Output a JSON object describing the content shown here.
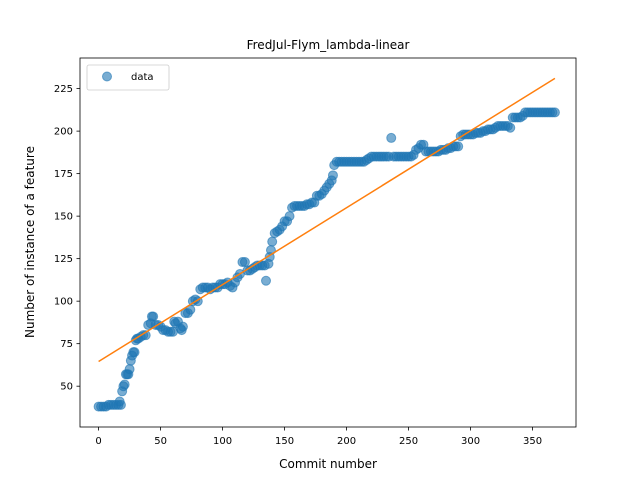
{
  "chart_data": {
    "type": "scatter",
    "title": "FredJul-Flym_lambda-linear",
    "xlabel": "Commit number",
    "ylabel": "Number of instance of a feature",
    "xlim": [
      -15,
      385
    ],
    "ylim": [
      26,
      243
    ],
    "xticks": [
      0,
      50,
      100,
      150,
      200,
      250,
      300,
      350
    ],
    "yticks": [
      50,
      75,
      100,
      125,
      150,
      175,
      200,
      225
    ],
    "grid": false,
    "legend": {
      "placement": "top-left",
      "entries": [
        "data"
      ]
    },
    "series": [
      {
        "name": "data",
        "kind": "scatter",
        "color": "#1f77b4",
        "points": [
          [
            0,
            38
          ],
          [
            2,
            38
          ],
          [
            4,
            38
          ],
          [
            6,
            38
          ],
          [
            8,
            39
          ],
          [
            10,
            39
          ],
          [
            12,
            39
          ],
          [
            14,
            39
          ],
          [
            16,
            39
          ],
          [
            17,
            41
          ],
          [
            18,
            39
          ],
          [
            19,
            47
          ],
          [
            20,
            50
          ],
          [
            21,
            51
          ],
          [
            22,
            57
          ],
          [
            23,
            57
          ],
          [
            24,
            57
          ],
          [
            25,
            60
          ],
          [
            26,
            65
          ],
          [
            27,
            68
          ],
          [
            28,
            70
          ],
          [
            29,
            70
          ],
          [
            30,
            77
          ],
          [
            31,
            78
          ],
          [
            32,
            78
          ],
          [
            34,
            79
          ],
          [
            36,
            80
          ],
          [
            38,
            80
          ],
          [
            40,
            86
          ],
          [
            42,
            87
          ],
          [
            43,
            91
          ],
          [
            44,
            91
          ],
          [
            46,
            86
          ],
          [
            48,
            86
          ],
          [
            50,
            85
          ],
          [
            52,
            83
          ],
          [
            54,
            83
          ],
          [
            56,
            82
          ],
          [
            58,
            82
          ],
          [
            60,
            82
          ],
          [
            61,
            88
          ],
          [
            62,
            87
          ],
          [
            64,
            88
          ],
          [
            66,
            84
          ],
          [
            67,
            83
          ],
          [
            68,
            85
          ],
          [
            70,
            93
          ],
          [
            72,
            93
          ],
          [
            74,
            95
          ],
          [
            76,
            100
          ],
          [
            78,
            101
          ],
          [
            80,
            100
          ],
          [
            82,
            107
          ],
          [
            84,
            108
          ],
          [
            86,
            108
          ],
          [
            88,
            108
          ],
          [
            90,
            107
          ],
          [
            92,
            108
          ],
          [
            94,
            108
          ],
          [
            96,
            108
          ],
          [
            98,
            110
          ],
          [
            100,
            110
          ],
          [
            102,
            110
          ],
          [
            104,
            111
          ],
          [
            106,
            109
          ],
          [
            108,
            108
          ],
          [
            110,
            111
          ],
          [
            112,
            114
          ],
          [
            114,
            116
          ],
          [
            116,
            123
          ],
          [
            118,
            123
          ],
          [
            120,
            118
          ],
          [
            122,
            118
          ],
          [
            124,
            119
          ],
          [
            126,
            120
          ],
          [
            128,
            121
          ],
          [
            130,
            121
          ],
          [
            132,
            121
          ],
          [
            134,
            121
          ],
          [
            135,
            112
          ],
          [
            137,
            122
          ],
          [
            138,
            126
          ],
          [
            139,
            130
          ],
          [
            140,
            135
          ],
          [
            142,
            140
          ],
          [
            144,
            141
          ],
          [
            146,
            142
          ],
          [
            148,
            144
          ],
          [
            150,
            147
          ],
          [
            152,
            147
          ],
          [
            154,
            150
          ],
          [
            156,
            155
          ],
          [
            158,
            156
          ],
          [
            160,
            156
          ],
          [
            162,
            156
          ],
          [
            164,
            156
          ],
          [
            166,
            156
          ],
          [
            168,
            157
          ],
          [
            170,
            157
          ],
          [
            172,
            158
          ],
          [
            174,
            158
          ],
          [
            176,
            162
          ],
          [
            178,
            162
          ],
          [
            180,
            163
          ],
          [
            182,
            165
          ],
          [
            184,
            167
          ],
          [
            186,
            169
          ],
          [
            188,
            171
          ],
          [
            189,
            174
          ],
          [
            190,
            180
          ],
          [
            192,
            182
          ],
          [
            194,
            182
          ],
          [
            196,
            182
          ],
          [
            198,
            182
          ],
          [
            200,
            182
          ],
          [
            202,
            182
          ],
          [
            204,
            182
          ],
          [
            206,
            182
          ],
          [
            208,
            182
          ],
          [
            210,
            182
          ],
          [
            212,
            182
          ],
          [
            214,
            182
          ],
          [
            216,
            183
          ],
          [
            218,
            184
          ],
          [
            220,
            185
          ],
          [
            222,
            185
          ],
          [
            224,
            185
          ],
          [
            226,
            185
          ],
          [
            228,
            185
          ],
          [
            230,
            185
          ],
          [
            232,
            185
          ],
          [
            234,
            185
          ],
          [
            236,
            196
          ],
          [
            238,
            185
          ],
          [
            240,
            185
          ],
          [
            242,
            185
          ],
          [
            244,
            185
          ],
          [
            246,
            185
          ],
          [
            248,
            185
          ],
          [
            250,
            185
          ],
          [
            252,
            185
          ],
          [
            254,
            186
          ],
          [
            256,
            189
          ],
          [
            258,
            190
          ],
          [
            260,
            192
          ],
          [
            262,
            192
          ],
          [
            264,
            188
          ],
          [
            266,
            188
          ],
          [
            268,
            188
          ],
          [
            270,
            188
          ],
          [
            272,
            188
          ],
          [
            274,
            188
          ],
          [
            276,
            189
          ],
          [
            278,
            189
          ],
          [
            280,
            189
          ],
          [
            282,
            190
          ],
          [
            284,
            190
          ],
          [
            286,
            191
          ],
          [
            288,
            191
          ],
          [
            290,
            191
          ],
          [
            292,
            197
          ],
          [
            294,
            198
          ],
          [
            296,
            198
          ],
          [
            298,
            198
          ],
          [
            300,
            198
          ],
          [
            302,
            198
          ],
          [
            304,
            199
          ],
          [
            306,
            199
          ],
          [
            308,
            199
          ],
          [
            310,
            200
          ],
          [
            312,
            200
          ],
          [
            314,
            201
          ],
          [
            316,
            201
          ],
          [
            318,
            201
          ],
          [
            320,
            202
          ],
          [
            322,
            203
          ],
          [
            324,
            203
          ],
          [
            326,
            203
          ],
          [
            328,
            203
          ],
          [
            330,
            203
          ],
          [
            332,
            202
          ],
          [
            334,
            208
          ],
          [
            336,
            208
          ],
          [
            338,
            208
          ],
          [
            340,
            208
          ],
          [
            342,
            209
          ],
          [
            344,
            211
          ],
          [
            346,
            211
          ],
          [
            348,
            211
          ],
          [
            350,
            211
          ],
          [
            352,
            211
          ],
          [
            354,
            211
          ],
          [
            356,
            211
          ],
          [
            358,
            211
          ],
          [
            360,
            211
          ],
          [
            362,
            211
          ],
          [
            364,
            211
          ],
          [
            366,
            211
          ],
          [
            368,
            211
          ]
        ]
      },
      {
        "name": "",
        "kind": "line",
        "color": "#ff7f0e",
        "points": [
          [
            0,
            64.5
          ],
          [
            368,
            231
          ]
        ]
      }
    ]
  }
}
